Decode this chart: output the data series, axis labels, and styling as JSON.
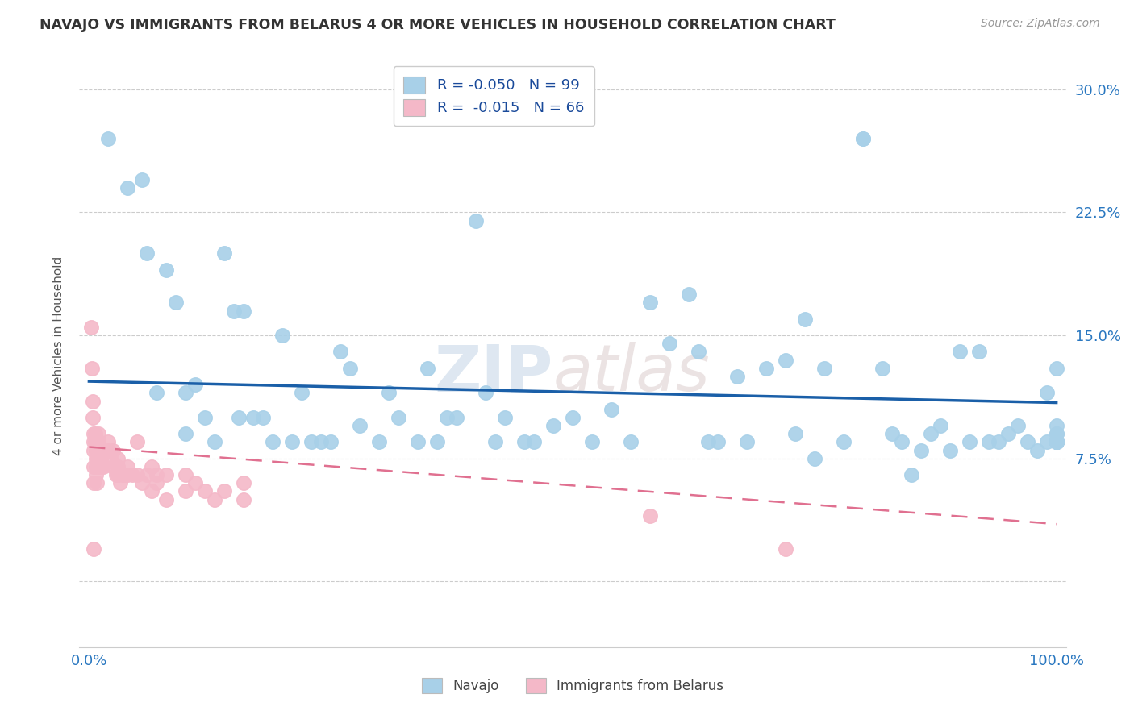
{
  "title": "NAVAJO VS IMMIGRANTS FROM BELARUS 4 OR MORE VEHICLES IN HOUSEHOLD CORRELATION CHART",
  "source": "Source: ZipAtlas.com",
  "ylabel": "4 or more Vehicles in Household",
  "xlabel": "",
  "xlim": [
    -0.01,
    1.01
  ],
  "ylim": [
    -0.04,
    0.315
  ],
  "yticks": [
    0.0,
    0.075,
    0.15,
    0.225,
    0.3
  ],
  "ytick_labels": [
    "",
    "7.5%",
    "15.0%",
    "22.5%",
    "30.0%"
  ],
  "ytick_labels_right": [
    "",
    "7.5%",
    "15.0%",
    "22.5%",
    "30.0%"
  ],
  "xticks": [
    0.0,
    0.25,
    0.5,
    0.75,
    1.0
  ],
  "xtick_labels": [
    "0.0%",
    "",
    "",
    "",
    "100.0%"
  ],
  "navajo_color": "#a8d0e8",
  "belarus_color": "#f4b8c8",
  "navajo_line_color": "#1a5fa8",
  "belarus_line_color": "#e07090",
  "legend_navajo_R": "-0.050",
  "legend_navajo_N": "99",
  "legend_belarus_R": "-0.015",
  "legend_belarus_N": "66",
  "legend_label_navajo": "Navajo",
  "legend_label_belarus": "Immigrants from Belarus",
  "watermark": "ZIPatlas",
  "navajo_x": [
    0.02,
    0.04,
    0.055,
    0.06,
    0.07,
    0.08,
    0.09,
    0.1,
    0.1,
    0.11,
    0.12,
    0.13,
    0.14,
    0.15,
    0.155,
    0.16,
    0.17,
    0.18,
    0.19,
    0.2,
    0.21,
    0.22,
    0.23,
    0.24,
    0.25,
    0.26,
    0.27,
    0.28,
    0.3,
    0.31,
    0.32,
    0.34,
    0.35,
    0.36,
    0.37,
    0.38,
    0.4,
    0.41,
    0.42,
    0.43,
    0.45,
    0.46,
    0.48,
    0.5,
    0.52,
    0.54,
    0.56,
    0.58,
    0.6,
    0.62,
    0.63,
    0.64,
    0.65,
    0.67,
    0.68,
    0.7,
    0.72,
    0.73,
    0.74,
    0.75,
    0.76,
    0.78,
    0.8,
    0.8,
    0.82,
    0.83,
    0.84,
    0.85,
    0.86,
    0.87,
    0.88,
    0.89,
    0.9,
    0.91,
    0.92,
    0.93,
    0.94,
    0.95,
    0.96,
    0.97,
    0.98,
    0.99,
    0.99,
    1.0,
    1.0,
    1.0,
    1.0,
    1.0,
    1.0,
    1.0,
    1.0,
    1.0,
    1.0,
    1.0,
    1.0,
    1.0,
    1.0,
    1.0,
    1.0
  ],
  "navajo_y": [
    0.27,
    0.24,
    0.245,
    0.2,
    0.115,
    0.19,
    0.17,
    0.115,
    0.09,
    0.12,
    0.1,
    0.085,
    0.2,
    0.165,
    0.1,
    0.165,
    0.1,
    0.1,
    0.085,
    0.15,
    0.085,
    0.115,
    0.085,
    0.085,
    0.085,
    0.14,
    0.13,
    0.095,
    0.085,
    0.115,
    0.1,
    0.085,
    0.13,
    0.085,
    0.1,
    0.1,
    0.22,
    0.115,
    0.085,
    0.1,
    0.085,
    0.085,
    0.095,
    0.1,
    0.085,
    0.105,
    0.085,
    0.17,
    0.145,
    0.175,
    0.14,
    0.085,
    0.085,
    0.125,
    0.085,
    0.13,
    0.135,
    0.09,
    0.16,
    0.075,
    0.13,
    0.085,
    0.27,
    0.27,
    0.13,
    0.09,
    0.085,
    0.065,
    0.08,
    0.09,
    0.095,
    0.08,
    0.14,
    0.085,
    0.14,
    0.085,
    0.085,
    0.09,
    0.095,
    0.085,
    0.08,
    0.115,
    0.085,
    0.085,
    0.09,
    0.085,
    0.095,
    0.085,
    0.085,
    0.085,
    0.085,
    0.085,
    0.13,
    0.09,
    0.085,
    0.085,
    0.085,
    0.085,
    0.085
  ],
  "belarus_x": [
    0.002,
    0.003,
    0.004,
    0.004,
    0.005,
    0.005,
    0.005,
    0.005,
    0.005,
    0.005,
    0.006,
    0.006,
    0.007,
    0.007,
    0.007,
    0.007,
    0.007,
    0.008,
    0.008,
    0.008,
    0.008,
    0.009,
    0.009,
    0.009,
    0.01,
    0.01,
    0.01,
    0.012,
    0.013,
    0.015,
    0.015,
    0.02,
    0.02,
    0.022,
    0.025,
    0.025,
    0.028,
    0.03,
    0.03,
    0.03,
    0.032,
    0.035,
    0.038,
    0.04,
    0.04,
    0.045,
    0.05,
    0.05,
    0.055,
    0.06,
    0.065,
    0.065,
    0.07,
    0.07,
    0.08,
    0.08,
    0.1,
    0.1,
    0.11,
    0.12,
    0.13,
    0.14,
    0.16,
    0.16,
    0.58,
    0.72
  ],
  "belarus_y": [
    0.155,
    0.13,
    0.11,
    0.1,
    0.09,
    0.085,
    0.08,
    0.07,
    0.06,
    0.02,
    0.09,
    0.085,
    0.085,
    0.08,
    0.075,
    0.07,
    0.065,
    0.085,
    0.08,
    0.075,
    0.06,
    0.085,
    0.075,
    0.07,
    0.09,
    0.085,
    0.075,
    0.075,
    0.07,
    0.08,
    0.07,
    0.085,
    0.08,
    0.075,
    0.08,
    0.07,
    0.065,
    0.075,
    0.07,
    0.065,
    0.06,
    0.065,
    0.065,
    0.07,
    0.065,
    0.065,
    0.085,
    0.065,
    0.06,
    0.065,
    0.07,
    0.055,
    0.065,
    0.06,
    0.065,
    0.05,
    0.065,
    0.055,
    0.06,
    0.055,
    0.05,
    0.055,
    0.06,
    0.05,
    0.04,
    0.02
  ],
  "background_color": "#ffffff",
  "grid_color": "#cccccc"
}
